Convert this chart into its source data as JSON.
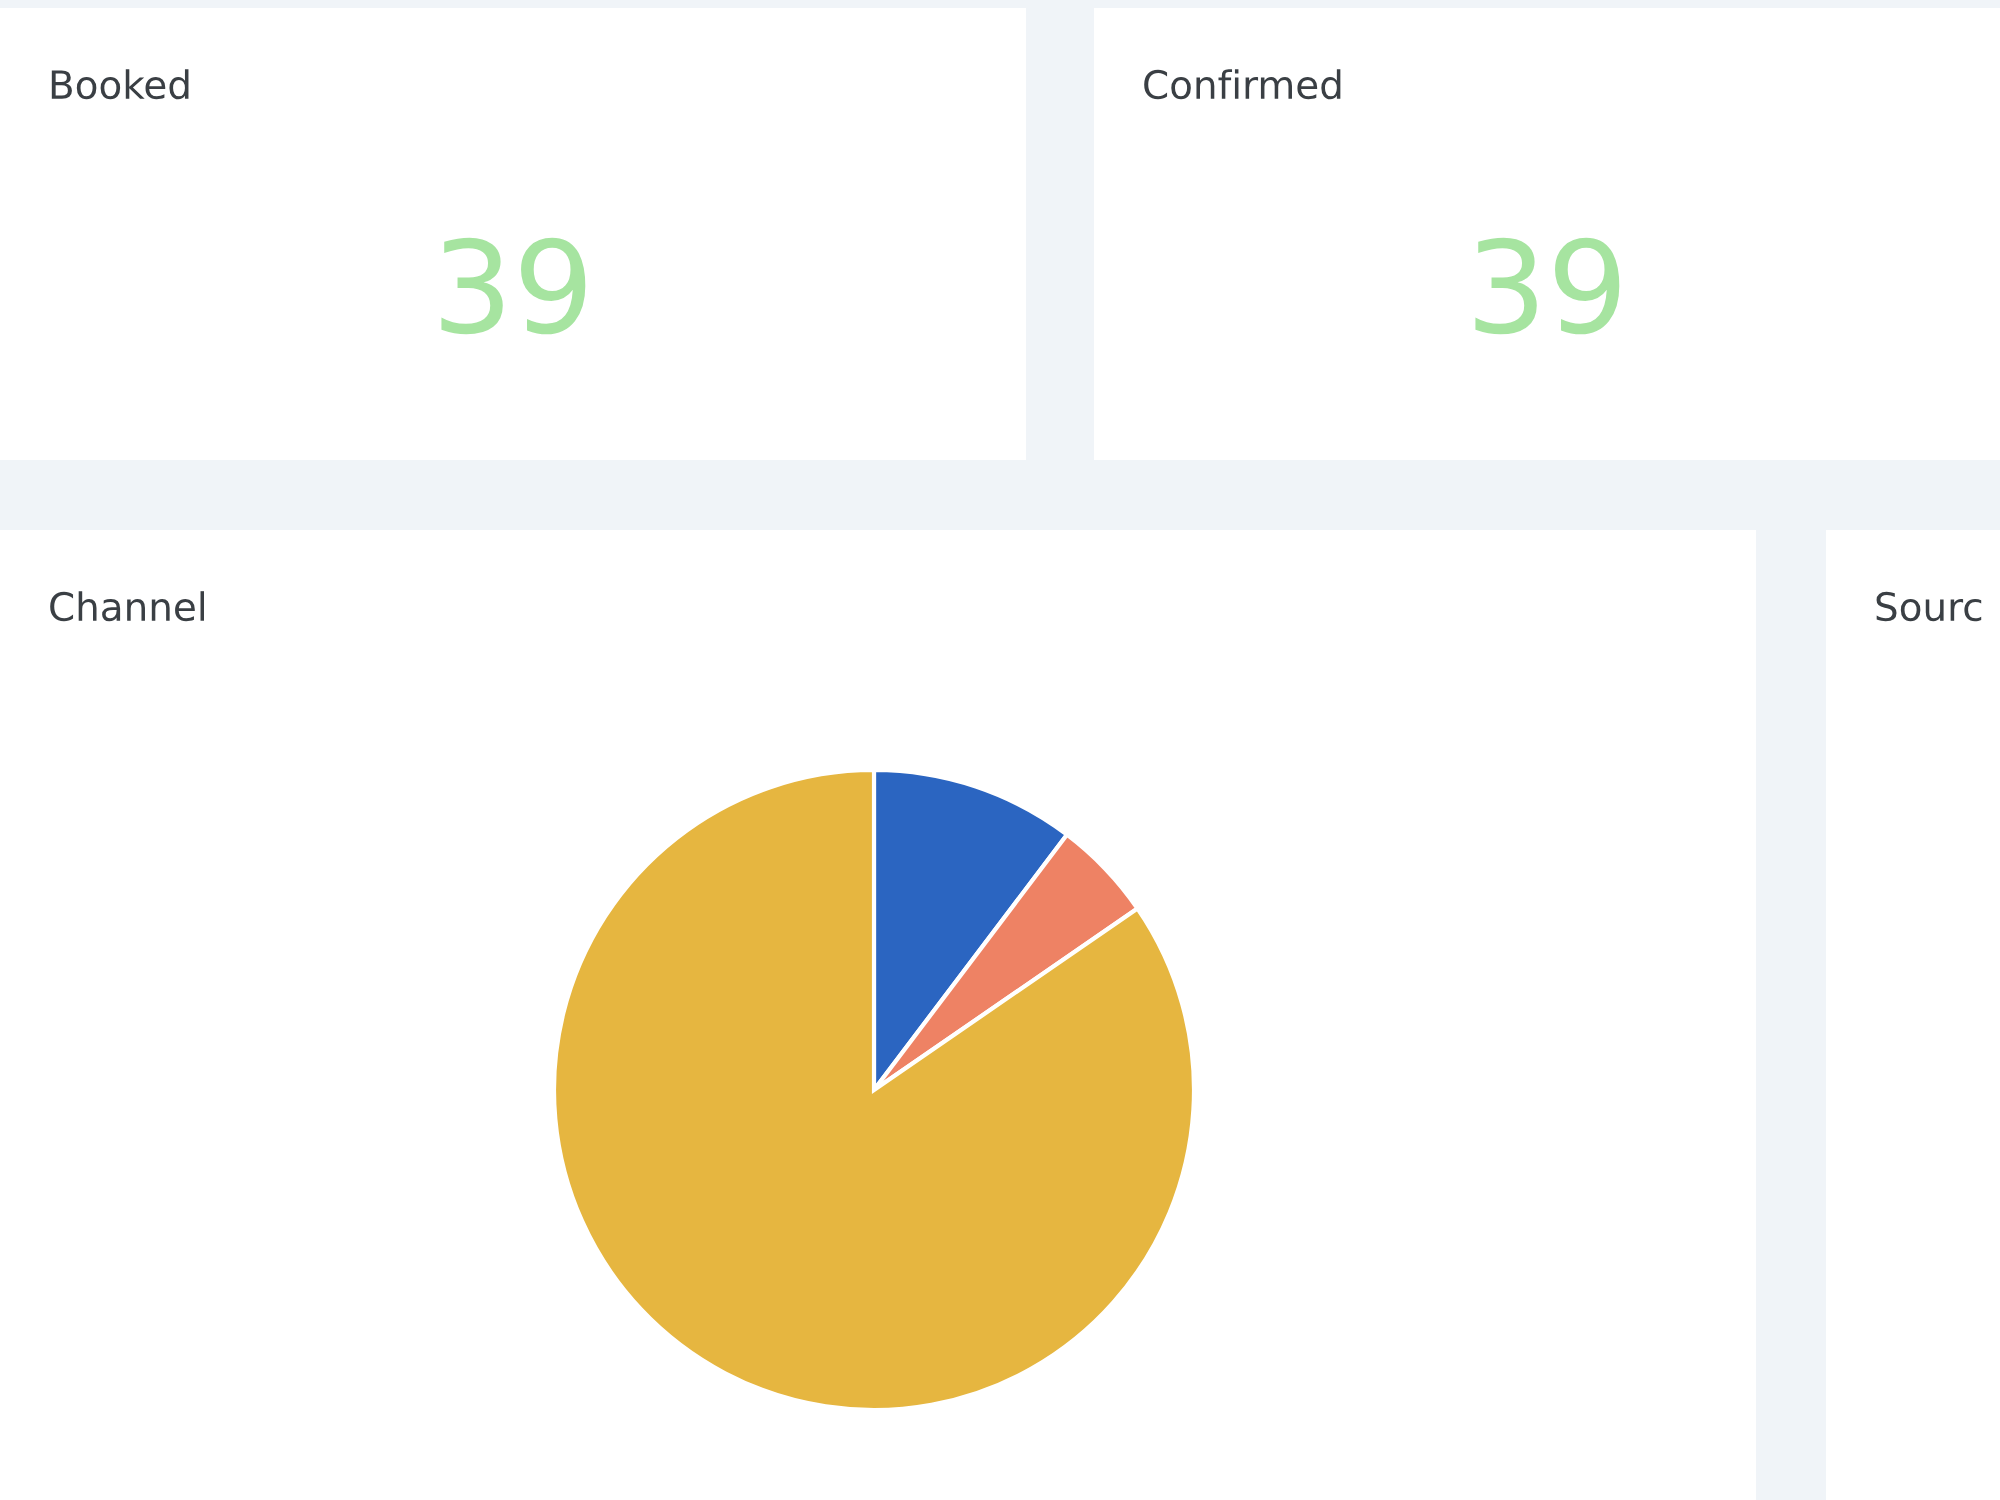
{
  "chart_data": [
    {
      "type": "other",
      "title": "Booked",
      "annotations": [
        "39"
      ]
    },
    {
      "type": "other",
      "title": "Confirmed",
      "annotations": [
        "39"
      ]
    },
    {
      "type": "pie",
      "title": "Channel",
      "categories": [
        null,
        null,
        null
      ],
      "values": [
        10.3,
        5.1,
        84.6
      ],
      "colors": [
        "#2b65c1",
        "#ee8264",
        "#e6b640"
      ]
    },
    {
      "type": "other",
      "title": "Sourc"
    }
  ]
}
